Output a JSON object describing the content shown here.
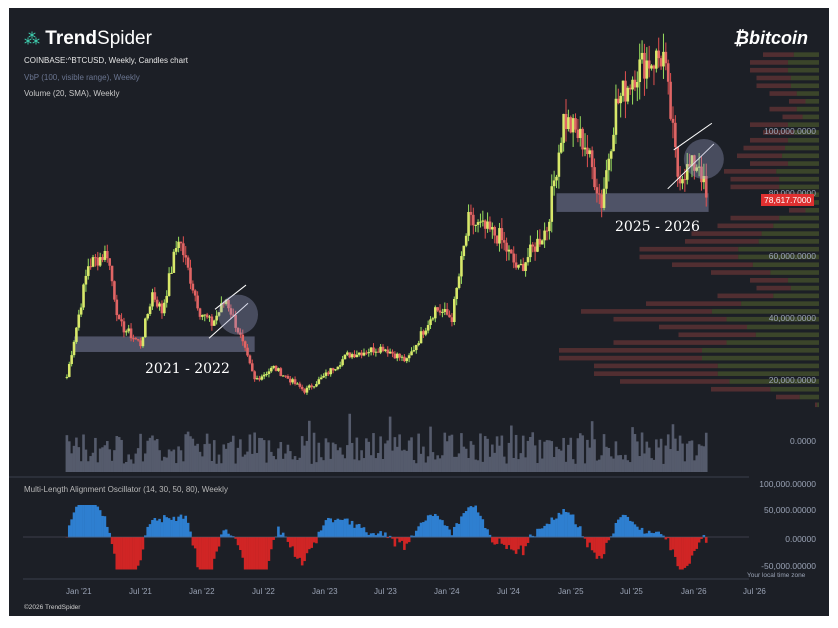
{
  "brand": {
    "name_bold": "Trend",
    "name_light": "Spider",
    "icon": "network-nodes-icon",
    "copyright": "©2026 TrendSpider"
  },
  "watermark": {
    "text": "bitcoin",
    "symbol": "₿"
  },
  "header": {
    "symbol_line": "COINBASE:^BTCUSD, Weekly, Candles chart",
    "vbp_line": "VbP (100, visible range), Weekly",
    "volume_line": "Volume (20, SMA), Weekly"
  },
  "oscillator": {
    "label": "Multi-Length Alignment Oscillator (14, 30, 50, 80), Weekly"
  },
  "last_price": "78,617.7000",
  "timezone_note": "Your local time zone",
  "annotations": {
    "period_a": "2021 - 2022",
    "period_b": "2025 - 2026"
  },
  "colors": {
    "bg": "#1c1f26",
    "up": "#9adf5e",
    "down": "#e05050",
    "zone": "#8e93b8",
    "osc_up": "#2e7fd0",
    "osc_down": "#d02525"
  },
  "chart_data": {
    "type": "candlestick",
    "title": "COINBASE:^BTCUSD, Weekly, Candles chart",
    "price_axis_ticks": [
      "100,000.0000",
      "80,000.0000",
      "60,000.0000",
      "40,000.0000",
      "20,000.0000"
    ],
    "volume_axis_ticks": [
      "0.0000",
      "100,000.00000"
    ],
    "oscillator_axis_ticks": [
      "50,000.00000",
      "0.00000",
      "-50,000.00000"
    ],
    "x_ticks": [
      "Jan '21",
      "Jul '21",
      "Jan '22",
      "Jul '22",
      "Jan '23",
      "Jul '23",
      "Jan '24",
      "Jul '24",
      "Jan '25",
      "Jul '25",
      "Jan '26",
      "Jul '26"
    ],
    "close_path": [
      [
        "2020-12-14",
        21000
      ],
      [
        "2021-01-04",
        33000
      ],
      [
        "2021-02-15",
        57000
      ],
      [
        "2021-04-12",
        61000
      ],
      [
        "2021-05-17",
        38000
      ],
      [
        "2021-07-19",
        31500
      ],
      [
        "2021-08-23",
        48000
      ],
      [
        "2021-09-20",
        42000
      ],
      [
        "2021-11-08",
        66000
      ],
      [
        "2022-01-10",
        42000
      ],
      [
        "2022-02-14",
        38000
      ],
      [
        "2022-03-28",
        46000
      ],
      [
        "2022-05-02",
        36000
      ],
      [
        "2022-06-20",
        20000
      ],
      [
        "2022-08-15",
        24000
      ],
      [
        "2022-11-14",
        16500
      ],
      [
        "2023-01-09",
        21000
      ],
      [
        "2023-03-20",
        28000
      ],
      [
        "2023-07-03",
        30500
      ],
      [
        "2023-09-11",
        26000
      ],
      [
        "2023-12-04",
        43000
      ],
      [
        "2024-01-22",
        40000
      ],
      [
        "2024-03-11",
        71000
      ],
      [
        "2024-06-10",
        66000
      ],
      [
        "2024-08-05",
        55000
      ],
      [
        "2024-10-28",
        69000
      ],
      [
        "2024-12-16",
        104000
      ],
      [
        "2025-02-17",
        96000
      ],
      [
        "2025-04-07",
        77000
      ],
      [
        "2025-05-19",
        108000
      ],
      [
        "2025-07-14",
        119000
      ],
      [
        "2025-08-11",
        122000
      ],
      [
        "2025-10-06",
        124000
      ],
      [
        "2025-11-17",
        86000
      ],
      [
        "2025-12-22",
        88000
      ],
      [
        "2026-01-19",
        90000
      ],
      [
        "2026-02-09",
        78617.7
      ]
    ],
    "support_zones": [
      {
        "from": "2021-01-04",
        "to": "2022-06-20",
        "low": 29000,
        "high": 34000
      },
      {
        "from": "2024-11-25",
        "to": "2026-02-16",
        "low": 74000,
        "high": 80000
      }
    ],
    "bear_flags": [
      {
        "from": "2022-03-07",
        "to": "2022-05-02",
        "low": 36000,
        "high": 46000
      },
      {
        "from": "2025-11-17",
        "to": "2026-02-02",
        "low": 84000,
        "high": 98000
      }
    ],
    "grid": false,
    "legend": "none"
  }
}
